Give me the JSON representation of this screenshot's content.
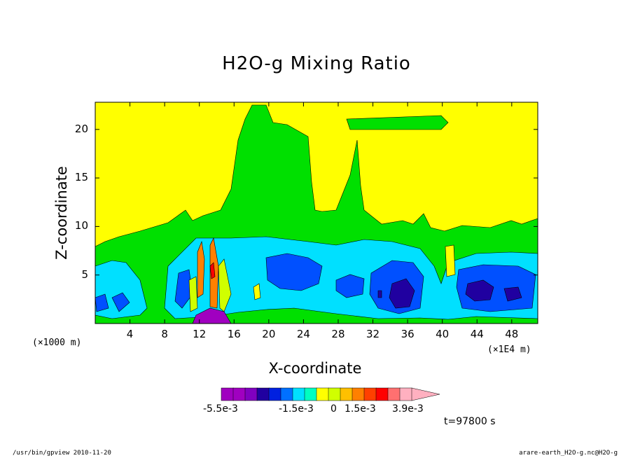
{
  "chart_data": {
    "type": "heatmap",
    "title": "H2O-g Mixing Ratio",
    "xlabel": "X-coordinate",
    "ylabel": "Z-coordinate",
    "x_unit_note": "(×1000 m)",
    "x_scale_note": "(×1E4 m)",
    "x_ticks": [
      "4",
      "8",
      "12",
      "16",
      "20",
      "24",
      "28",
      "32",
      "36",
      "40",
      "44",
      "48"
    ],
    "y_ticks": [
      "5",
      "10",
      "15",
      "20"
    ],
    "xlim": [
      0,
      51
    ],
    "ylim": [
      0,
      22.8
    ],
    "colorbar": {
      "colors": [
        "#a000c0",
        "#a000c0",
        "#8000c0",
        "#2000a0",
        "#0020e0",
        "#0070ff",
        "#00e0ff",
        "#00ffc0",
        "#ffff00",
        "#d0ff00",
        "#ffc000",
        "#ff8000",
        "#ff4000",
        "#ff0000",
        "#ff7070",
        "#ffb0c0"
      ],
      "labels": [
        "-5.5e-3",
        "-1.5e-3",
        "0",
        "1.5e-3",
        "3.9e-3"
      ]
    },
    "time_label": "t=97800 s"
  },
  "footer": {
    "left": "/usr/bin/gpview   2010-11-20",
    "right": "arare-earth_H2O-g.nc@H2O-g"
  }
}
